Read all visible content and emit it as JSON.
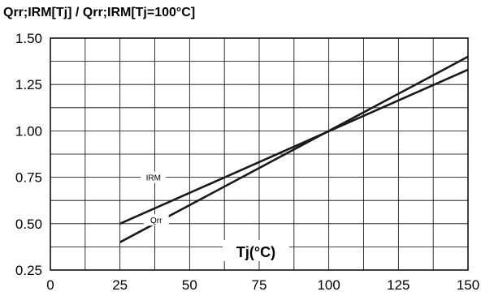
{
  "chart_data": {
    "type": "line",
    "title": "Qrr;IRM[Tj] / Qrr;IRM[Tj=100°C]",
    "xlabel": "Tj(°C)",
    "ylabel": "",
    "xlim": [
      0,
      150
    ],
    "ylim": [
      0.25,
      1.5
    ],
    "grid": true,
    "x_ticks": [
      0,
      25,
      50,
      75,
      100,
      125,
      150
    ],
    "y_ticks": [
      0.25,
      0.5,
      0.75,
      1.0,
      1.25,
      1.5
    ],
    "x_tick_labels": [
      "0",
      "25",
      "50",
      "75",
      "100",
      "125",
      "150"
    ],
    "y_tick_labels": [
      "0.25",
      "0.50",
      "0.75",
      "1.00",
      "1.25",
      "1.50"
    ],
    "series": [
      {
        "name": "IRM",
        "x": [
          25,
          150
        ],
        "y": [
          0.5,
          1.33
        ],
        "label_at": [
          37,
          0.75
        ]
      },
      {
        "name": "Qrr",
        "x": [
          25,
          150
        ],
        "y": [
          0.4,
          1.4
        ],
        "label_at": [
          38,
          0.52
        ]
      }
    ],
    "colors": {
      "line": "#1a1a1a",
      "grid": "#000000",
      "background": "#ffffff"
    }
  }
}
